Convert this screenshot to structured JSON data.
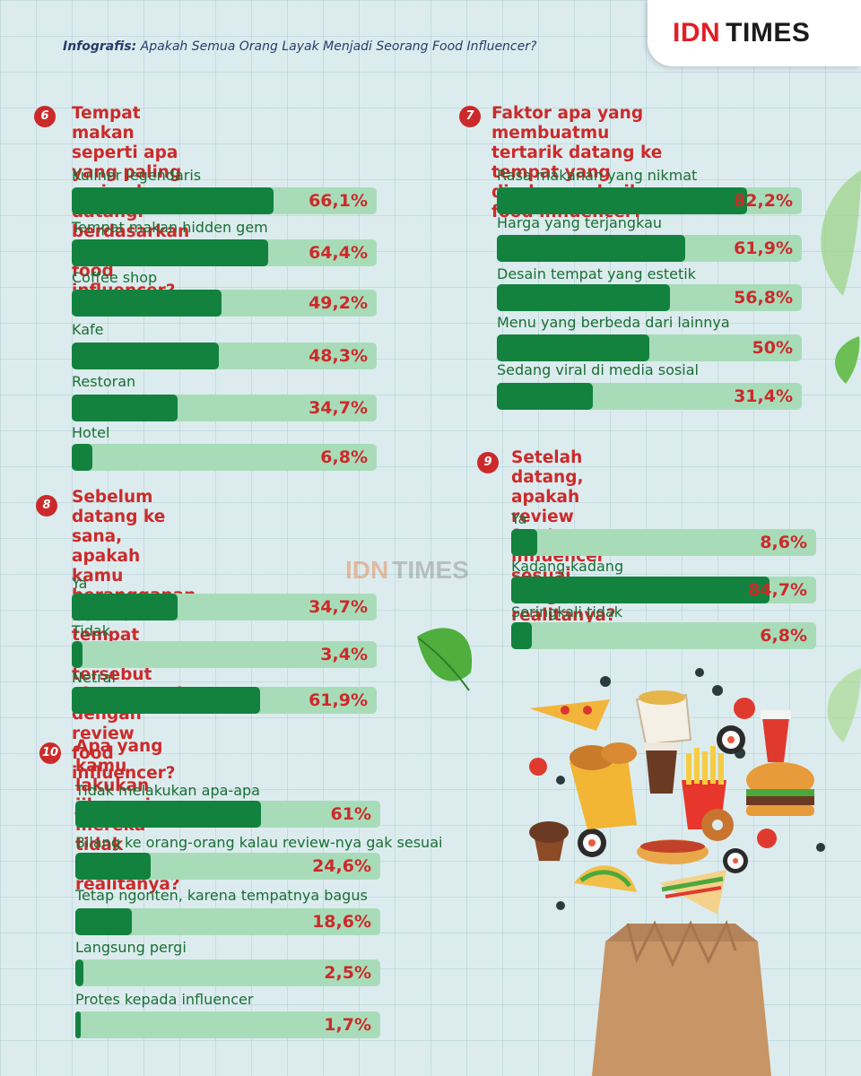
{
  "header": {
    "prefix": "Infografis:",
    "title": "Apakah Semua Orang Layak Menjadi Seorang Food Influencer?"
  },
  "logo": {
    "idn": "IDN",
    "times": "TIMES"
  },
  "watermark": {
    "idn": "IDN",
    "times": "TIMES"
  },
  "colors": {
    "accent_red": "#cc2a2a",
    "bar_fill": "#12823e",
    "bar_track": "#a8dcb9",
    "label_green": "#1a6e34"
  },
  "chart_data": [
    {
      "type": "bar",
      "number": "6",
      "title": "Tempat makan seperti apa yang paling\nsering kamu datangi berdasarkan\nrekomendasi food influencer?",
      "categories": [
        "Kuliner legendaris",
        "Tempat makan hidden gem",
        "Coffee shop",
        "Kafe",
        "Restoran",
        "Hotel"
      ],
      "values": [
        66.1,
        64.4,
        49.2,
        48.3,
        34.7,
        6.8
      ],
      "labels": [
        "66,1%",
        "64,4%",
        "49,2%",
        "48,3%",
        "34,7%",
        "6,8%"
      ],
      "ylim": [
        0,
        100
      ]
    },
    {
      "type": "bar",
      "number": "7",
      "title": "Faktor apa yang membuatmu\ntertarik datang ke tempat yang\ndirekomendasikan food influencer?",
      "categories": [
        "Rasa makanan yang nikmat",
        "Harga yang terjangkau",
        "Desain tempat yang estetik",
        "Menu yang berbeda dari lainnya",
        "Sedang viral di media sosial"
      ],
      "values": [
        82.2,
        61.9,
        56.8,
        50,
        31.4
      ],
      "labels": [
        "82,2%",
        "61,9%",
        "56,8%",
        "50%",
        "31,4%"
      ],
      "ylim": [
        0,
        100
      ]
    },
    {
      "type": "bar",
      "number": "8",
      "title": "Sebelum datang ke sana, apakah kamu\nberanggapan bahwa tempat makan\ntersebut akan sesuai dengan review\nfood influencer?",
      "categories": [
        "Ya",
        "Tidak",
        "Netral"
      ],
      "values": [
        34.7,
        3.4,
        61.9
      ],
      "labels": [
        "34,7%",
        "3,4%",
        "61,9%"
      ],
      "ylim": [
        0,
        100
      ]
    },
    {
      "type": "bar",
      "number": "9",
      "title": "Setelah datang, apakah review\nfood influencer sesuai dengan\nrealitanya?",
      "categories": [
        "Ya",
        "Kadang-kadang",
        "Seringkali tidak"
      ],
      "values": [
        8.6,
        84.7,
        6.8
      ],
      "labels": [
        "8,6%",
        "84,7%",
        "6,8%"
      ],
      "ylim": [
        0,
        100
      ]
    },
    {
      "type": "bar",
      "number": "10",
      "title": "Apa yang kamu lakukan jika review\nmereka tidak sesuai realitanya?",
      "categories": [
        "Tidak melakukan apa-apa",
        "Bilang ke orang-orang kalau review-nya gak sesuai",
        "Tetap ngonten, karena tempatnya bagus",
        "Langsung pergi",
        "Protes kepada influencer"
      ],
      "values": [
        61,
        24.6,
        18.6,
        2.5,
        1.7
      ],
      "labels": [
        "61%",
        "24,6%",
        "18,6%",
        "2,5%",
        "1,7%"
      ],
      "ylim": [
        0,
        100
      ]
    }
  ]
}
